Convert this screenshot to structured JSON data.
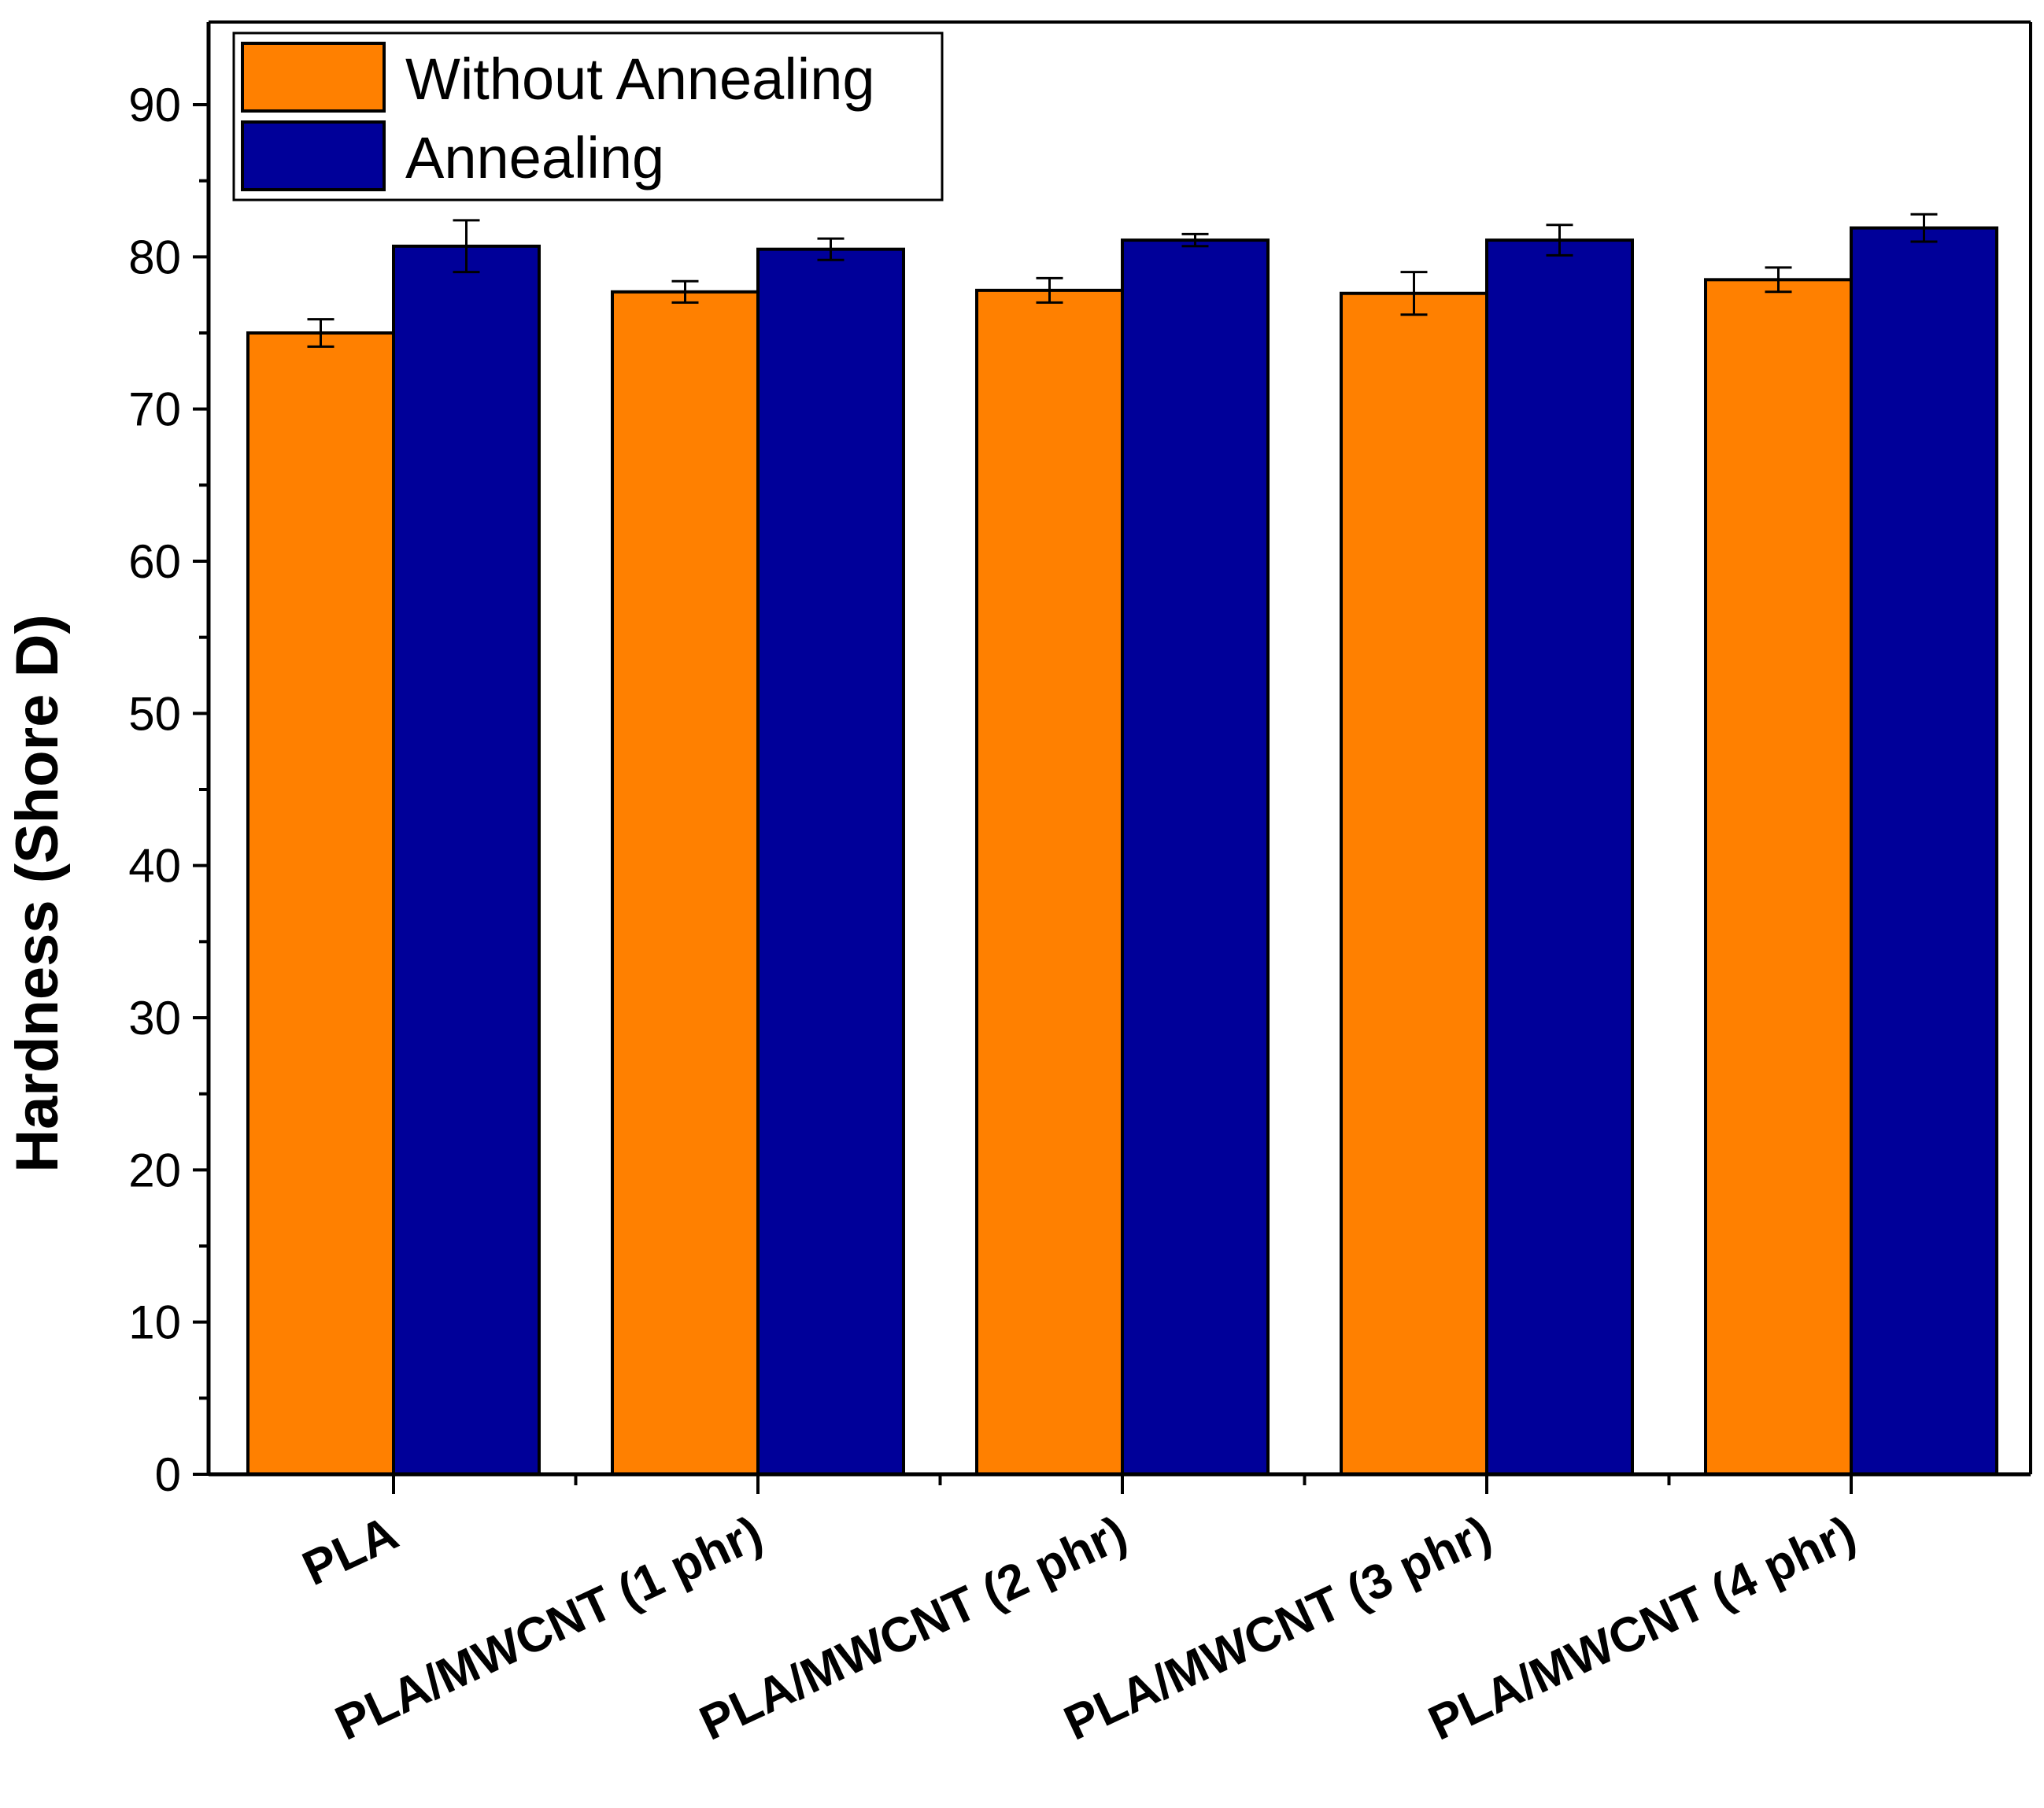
{
  "chart_data": {
    "type": "bar",
    "title": "",
    "xlabel": "",
    "ylabel": "Hardness (Shore D)",
    "ylim": [
      0,
      95
    ],
    "yticks": [
      0,
      10,
      20,
      30,
      40,
      50,
      60,
      70,
      80,
      90
    ],
    "categories": [
      "PLA",
      "PLA/MWCNT (1 phr)",
      "PLA/MWCNT (2 phr)",
      "PLA/MWCNT (3 phr)",
      "PLA/MWCNT (4 phr)"
    ],
    "series": [
      {
        "name": "Without Annealing",
        "color": "#ff8000",
        "values": [
          75.0,
          77.7,
          77.8,
          77.6,
          78.5
        ],
        "errors": [
          0.9,
          0.7,
          0.8,
          1.4,
          0.8
        ]
      },
      {
        "name": "Annealing",
        "color": "#000099",
        "values": [
          80.7,
          80.5,
          81.1,
          81.1,
          81.9
        ],
        "errors": [
          1.7,
          0.7,
          0.4,
          1.0,
          0.9
        ]
      }
    ],
    "legend_position": "top-left",
    "grid": false
  }
}
